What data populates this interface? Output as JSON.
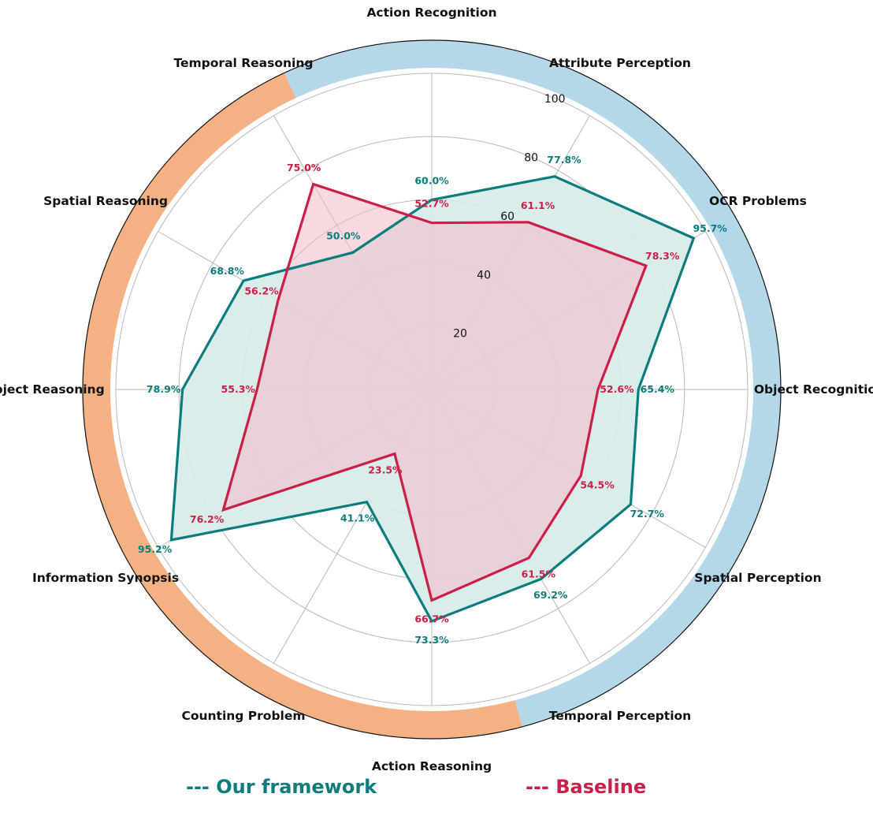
{
  "chart_data": {
    "type": "radar",
    "title": "",
    "categories": [
      "Action Recognition",
      "Attribute Perception",
      "OCR Problems",
      "Object Recognition",
      "Spatial Perception",
      "Temporal Perception",
      "Action Reasoning",
      "Counting Problem",
      "Information Synopsis",
      "Object Reasoning",
      "Spatial Reasoning",
      "Temporal Reasoning"
    ],
    "rlim": [
      0,
      100
    ],
    "rticks": [
      "20",
      "40",
      "60",
      "80",
      "100"
    ],
    "grid": true,
    "outer_ring": {
      "perception_color": "#b4d7e9",
      "reasoning_color": "#f4b183"
    },
    "series": [
      {
        "name": "Our framework",
        "legend_label": "--- Our framework",
        "color": "#0d7c7c",
        "fill": "#d5ebe9",
        "values": [
          60.0,
          77.8,
          95.7,
          65.4,
          72.7,
          69.2,
          73.3,
          41.1,
          95.2,
          78.9,
          68.8,
          50.0
        ],
        "labels": [
          "60.0%",
          "77.8%",
          "95.7%",
          "65.4%",
          "72.7%",
          "69.2%",
          "73.3%",
          "41.1%",
          "95.2%",
          "78.9%",
          "68.8%",
          "50.0%"
        ]
      },
      {
        "name": "Baseline",
        "legend_label": "--- Baseline",
        "color": "#cc1f48",
        "fill": "#f4b9c6",
        "values": [
          52.7,
          61.1,
          78.3,
          52.6,
          54.5,
          61.5,
          66.7,
          23.5,
          76.2,
          55.3,
          56.2,
          75.0
        ],
        "labels": [
          "52.7%",
          "61.1%",
          "78.3%",
          "52.6%",
          "54.5%",
          "61.5%",
          "66.7%",
          "23.5%",
          "76.2%",
          "55.3%",
          "56.2%",
          "75.0%"
        ]
      }
    ]
  }
}
